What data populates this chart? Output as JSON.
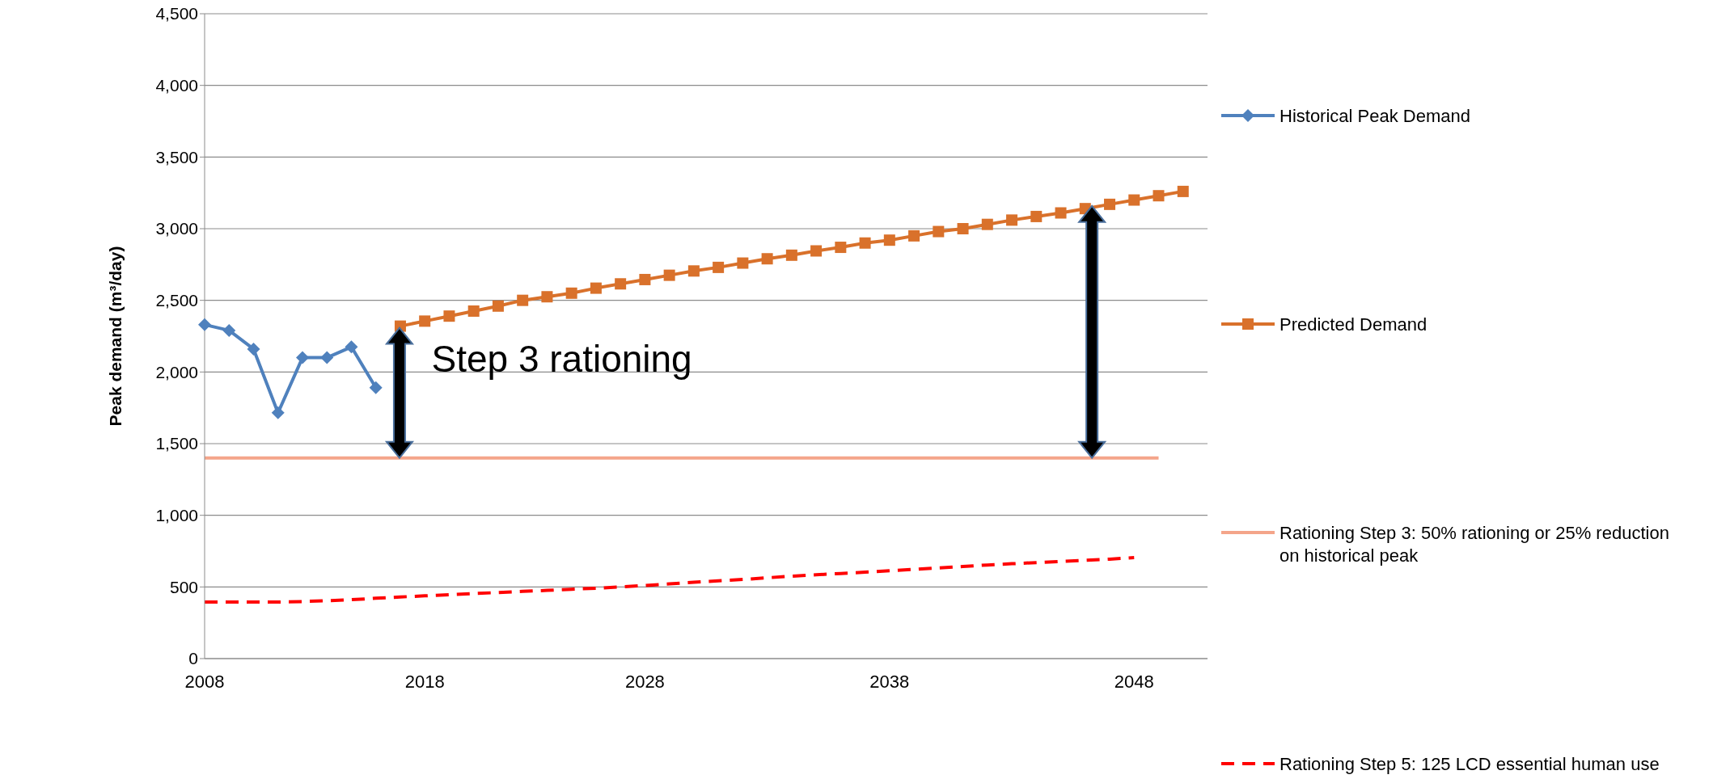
{
  "chart_data": {
    "type": "line",
    "ylabel": "Peak demand (m³/day)",
    "categories": [
      "2008",
      null,
      null,
      null,
      null,
      null,
      null,
      null,
      null,
      "2018",
      null,
      null,
      null,
      null,
      null,
      null,
      null,
      null,
      "2028",
      null,
      null,
      null,
      null,
      null,
      null,
      null,
      null,
      null,
      "2038",
      null,
      null,
      null,
      null,
      null,
      null,
      null,
      null,
      null,
      "2048",
      null,
      null,
      null
    ],
    "series": [
      {
        "name": "Historical Peak Demand",
        "color": "#4f81bd",
        "marker": "diamond",
        "values": [
          2330,
          2290,
          2160,
          1715,
          2100,
          2100,
          2175,
          1890,
          null,
          null,
          null,
          null,
          null,
          null,
          null,
          null,
          null,
          null,
          null,
          null,
          null,
          null,
          null,
          null,
          null,
          null,
          null,
          null,
          null,
          null,
          null,
          null,
          null,
          null,
          null,
          null,
          null,
          null,
          null,
          null,
          null,
          null
        ]
      },
      {
        "name": "Predicted Demand",
        "color": "#d9712b",
        "marker": "square",
        "values": [
          null,
          null,
          null,
          null,
          null,
          null,
          null,
          null,
          2320,
          2355,
          2390,
          2425,
          2460,
          2500,
          2525,
          2550,
          2585,
          2615,
          2645,
          2675,
          2705,
          2730,
          2760,
          2790,
          2815,
          2845,
          2870,
          2900,
          2920,
          2950,
          2980,
          3000,
          3030,
          3060,
          3085,
          3110,
          3140,
          3170,
          3200,
          3230,
          3260,
          null
        ]
      },
      {
        "name": "Rationing Step 3: 50% rationing or 25% reduction on historical peak",
        "color": "#f4a58a",
        "marker": "none",
        "values": [
          1400,
          1400,
          1400,
          1400,
          1400,
          1400,
          1400,
          1400,
          1400,
          1400,
          1400,
          1400,
          1400,
          1400,
          1400,
          1400,
          1400,
          1400,
          1400,
          1400,
          1400,
          1400,
          1400,
          1400,
          1400,
          1400,
          1400,
          1400,
          1400,
          1400,
          1400,
          1400,
          1400,
          1400,
          1400,
          1400,
          1400,
          1400,
          1400,
          1400,
          null,
          null
        ]
      },
      {
        "name": "Rationing Step 5: 125 LCD essential human use",
        "color": "#ff0000",
        "marker": "none",
        "line_style": "dashed",
        "values": [
          395,
          395,
          395,
          395,
          398,
          404,
          411,
          421,
          430,
          438,
          446,
          454,
          461,
          469,
          476,
          484,
          491,
          500,
          510,
          521,
          533,
          543,
          552,
          564,
          575,
          585,
          594,
          603,
          613,
          623,
          633,
          643,
          653,
          662,
          670,
          678,
          686,
          694,
          705,
          null,
          null,
          null
        ]
      }
    ],
    "ylim": [
      0,
      4500
    ],
    "yticks": [
      0,
      500,
      {
        "value": 1000,
        "label": "1,000"
      },
      {
        "value": 1500,
        "label": "1,500"
      },
      {
        "value": 2000,
        "label": "2,000"
      },
      {
        "value": 2500,
        "label": "2,500"
      },
      {
        "value": 3000,
        "label": "3,000"
      },
      {
        "value": 3500,
        "label": "3,500"
      },
      {
        "value": 4000,
        "label": "4,000"
      },
      {
        "value": 4500,
        "label": "4,500"
      }
    ],
    "grid": "y",
    "legend": "right",
    "annotations": [
      "Step 3 rationing"
    ]
  }
}
